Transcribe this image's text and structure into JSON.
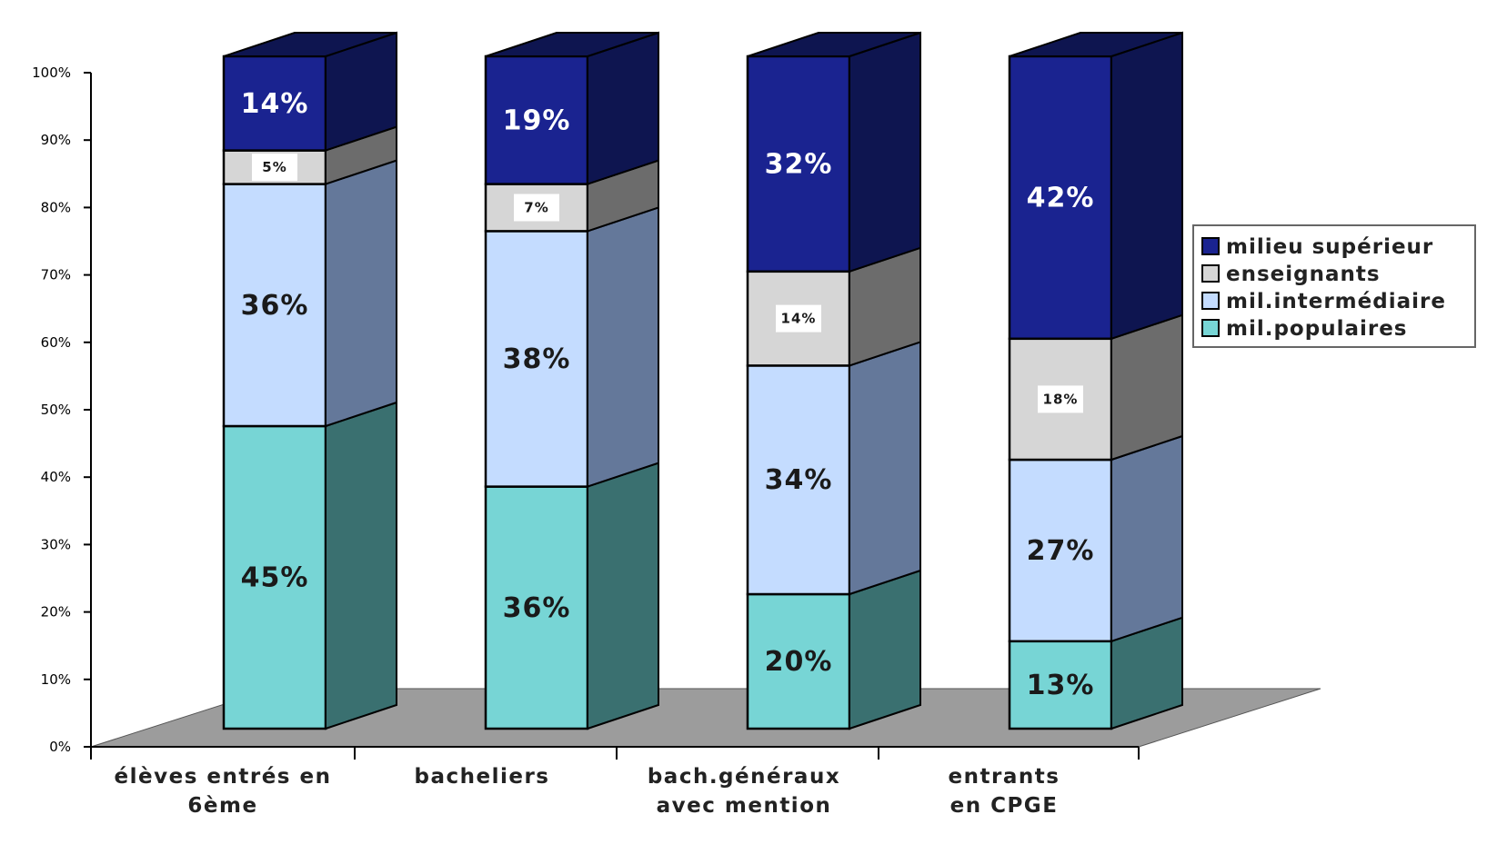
{
  "chart_data": {
    "type": "bar",
    "stacked": true,
    "three_d": true,
    "title": "",
    "xlabel": "",
    "ylabel": "",
    "ylim": [
      0,
      100
    ],
    "y_ticks": [
      "0%",
      "10%",
      "20%",
      "30%",
      "40%",
      "50%",
      "60%",
      "70%",
      "80%",
      "90%",
      "100%"
    ],
    "categories": [
      [
        "élèves entrés en",
        "6ème"
      ],
      [
        "bacheliers"
      ],
      [
        "bach.généraux",
        "avec mention"
      ],
      [
        "entrants",
        "en CPGE"
      ]
    ],
    "series": [
      {
        "name": "mil.populaires",
        "color": "#77d5d5",
        "side_color": "#3a7070",
        "values": [
          45,
          36,
          20,
          13
        ],
        "labels": [
          "45%",
          "36%",
          "20%",
          "13%"
        ]
      },
      {
        "name": "mil.intermédiaire",
        "color": "#c4dcff",
        "side_color": "#64789a",
        "values": [
          36,
          38,
          34,
          27
        ],
        "labels": [
          "36%",
          "38%",
          "34%",
          "27%"
        ]
      },
      {
        "name": "enseignants",
        "color": "#d6d6d6",
        "side_color": "#6c6c6c",
        "values": [
          5,
          7,
          14,
          18
        ],
        "labels": [
          "5%",
          "7%",
          "14%",
          "18%"
        ]
      },
      {
        "name": "milieu supérieur",
        "color": "#1a2390",
        "side_color": "#0e1550",
        "values": [
          14,
          19,
          32,
          42
        ],
        "labels": [
          "14%",
          "19%",
          "32%",
          "42%"
        ]
      }
    ],
    "legend": {
      "position": "right",
      "order": [
        "milieu supérieur",
        "enseignants",
        "mil.intermédiaire",
        "mil.populaires"
      ]
    },
    "grid": false
  }
}
